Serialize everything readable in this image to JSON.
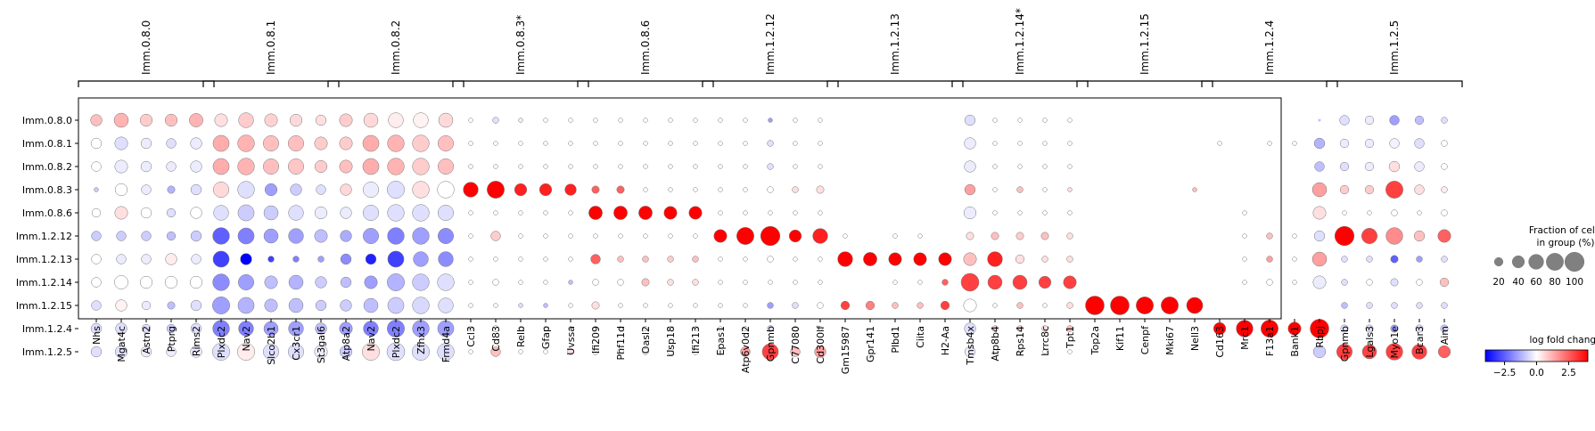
{
  "chart_data": {
    "type": "dotplot",
    "group_labels": [
      "Imm.0.8.0",
      "Imm.0.8.1",
      "Imm.0.8.2",
      "Imm.0.8.3*",
      "Imm.0.8.6",
      "Imm.1.2.12",
      "Imm.1.2.13",
      "Imm.1.2.14*",
      "Imm.1.2.15",
      "Imm.1.2.4",
      "Imm.1.2.5"
    ],
    "genes": [
      "Nhs",
      "Mgat4c",
      "Astn2",
      "Ptprg",
      "Rims2",
      "Plxdc2",
      "Nav2",
      "Slco2b1",
      "Cx3cr1",
      "St3gal6",
      "Atp8a2",
      "Nav2",
      "Plxdc2",
      "Zfhx3",
      "Frmd4a",
      "Ccl3",
      "Cd83",
      "Relb",
      "Gfap",
      "Uvssa",
      "Ifi209",
      "Phf11d",
      "Oasl2",
      "Usp18",
      "Ifi213",
      "Epas1",
      "Atp6v0d2",
      "Gpnmb",
      "C77080",
      "Cd300lf",
      "Gm15987",
      "Gpr141",
      "Plbd1",
      "Ciita",
      "H2-Aa",
      "Tmsb4x",
      "Atp8b4",
      "Rps14",
      "Lrrc8c",
      "Tpt1",
      "Top2a",
      "Kif11",
      "Cenpf",
      "Mki67",
      "Nell3",
      "Cd163",
      "Mrc1",
      "F13a1",
      "Bank1",
      "Rbpj",
      "Gpnmb",
      "Lgals3",
      "Myo1e",
      "Bcar3",
      "Aim"
    ],
    "rows": [
      "Imm.0.8.0",
      "Imm.0.8.1",
      "Imm.0.8.2",
      "Imm.0.8.3",
      "Imm.0.8.6",
      "Imm.1.2.12",
      "Imm.1.2.13",
      "Imm.1.2.14",
      "Imm.1.2.15",
      "Imm.1.2.4",
      "Imm.1.2.5"
    ],
    "fraction": [
      [
        35,
        55,
        40,
        40,
        50,
        45,
        60,
        45,
        40,
        30,
        45,
        55,
        60,
        60,
        55,
        5,
        10,
        5,
        5,
        5,
        5,
        5,
        5,
        5,
        5,
        5,
        5,
        5,
        5,
        5,
        2,
        2,
        2,
        2,
        2,
        30,
        5,
        5,
        5,
        5,
        2,
        2,
        2,
        2,
        2,
        2,
        2,
        2,
        2,
        2,
        25,
        20,
        25,
        20,
        10
      ],
      [
        30,
        45,
        30,
        25,
        35,
        70,
        75,
        65,
        65,
        45,
        45,
        70,
        75,
        75,
        65,
        5,
        5,
        5,
        5,
        5,
        5,
        5,
        5,
        5,
        5,
        5,
        5,
        10,
        5,
        5,
        2,
        2,
        2,
        2,
        2,
        35,
        5,
        5,
        5,
        5,
        2,
        2,
        2,
        2,
        2,
        5,
        2,
        5,
        5,
        30,
        20,
        20,
        25,
        25,
        10
      ],
      [
        25,
        45,
        30,
        25,
        35,
        70,
        75,
        65,
        65,
        40,
        45,
        70,
        75,
        75,
        65,
        5,
        5,
        5,
        5,
        5,
        5,
        5,
        5,
        5,
        5,
        5,
        5,
        10,
        5,
        5,
        2,
        2,
        2,
        2,
        2,
        35,
        5,
        5,
        5,
        5,
        2,
        2,
        2,
        2,
        2,
        2,
        2,
        2,
        2,
        25,
        20,
        20,
        30,
        25,
        10
      ],
      [
        5,
        40,
        25,
        15,
        30,
        65,
        75,
        40,
        35,
        25,
        35,
        65,
        80,
        75,
        75,
        60,
        80,
        40,
        40,
        35,
        15,
        15,
        5,
        5,
        5,
        5,
        5,
        10,
        10,
        15,
        2,
        2,
        2,
        2,
        2,
        30,
        5,
        10,
        5,
        5,
        2,
        2,
        2,
        2,
        5,
        2,
        2,
        2,
        2,
        55,
        20,
        20,
        80,
        25,
        10
      ],
      [
        20,
        45,
        30,
        20,
        35,
        60,
        70,
        55,
        60,
        40,
        35,
        65,
        75,
        75,
        65,
        5,
        5,
        5,
        5,
        5,
        50,
        50,
        50,
        45,
        45,
        5,
        5,
        5,
        5,
        5,
        2,
        2,
        2,
        2,
        2,
        40,
        5,
        5,
        5,
        5,
        2,
        2,
        2,
        2,
        2,
        2,
        5,
        2,
        2,
        45,
        5,
        5,
        10,
        5,
        10
      ],
      [
        25,
        25,
        25,
        20,
        30,
        75,
        70,
        55,
        60,
        45,
        35,
        65,
        75,
        75,
        65,
        5,
        25,
        5,
        5,
        5,
        5,
        5,
        5,
        5,
        5,
        45,
        80,
        100,
        40,
        60,
        5,
        2,
        5,
        5,
        2,
        15,
        15,
        15,
        15,
        10,
        2,
        2,
        2,
        2,
        2,
        2,
        5,
        10,
        5,
        30,
        100,
        65,
        75,
        30,
        45
      ],
      [
        25,
        25,
        25,
        35,
        25,
        70,
        35,
        10,
        10,
        10,
        30,
        30,
        70,
        60,
        60,
        5,
        5,
        5,
        5,
        5,
        25,
        10,
        10,
        10,
        10,
        5,
        5,
        10,
        5,
        5,
        60,
        50,
        45,
        45,
        45,
        45,
        60,
        20,
        10,
        10,
        2,
        2,
        2,
        2,
        2,
        2,
        5,
        10,
        5,
        55,
        10,
        10,
        15,
        10,
        10
      ],
      [
        25,
        50,
        40,
        40,
        40,
        75,
        65,
        45,
        55,
        35,
        30,
        45,
        80,
        75,
        75,
        5,
        10,
        5,
        5,
        5,
        10,
        10,
        15,
        10,
        10,
        5,
        5,
        5,
        5,
        5,
        2,
        2,
        5,
        5,
        10,
        85,
        55,
        55,
        40,
        45,
        2,
        2,
        2,
        2,
        2,
        2,
        5,
        10,
        5,
        45,
        10,
        10,
        15,
        10,
        20
      ],
      [
        25,
        35,
        20,
        15,
        30,
        80,
        70,
        45,
        55,
        30,
        35,
        55,
        70,
        75,
        60,
        5,
        5,
        5,
        5,
        5,
        15,
        5,
        5,
        5,
        5,
        5,
        5,
        10,
        10,
        10,
        20,
        20,
        10,
        10,
        20,
        45,
        5,
        10,
        5,
        10,
        95,
        95,
        80,
        80,
        70,
        2,
        2,
        2,
        2,
        2,
        10,
        10,
        10,
        10,
        10
      ],
      [
        30,
        35,
        20,
        20,
        30,
        75,
        60,
        55,
        60,
        35,
        45,
        60,
        80,
        75,
        70,
        5,
        10,
        5,
        5,
        5,
        5,
        5,
        5,
        5,
        5,
        5,
        5,
        10,
        5,
        5,
        2,
        2,
        2,
        2,
        2,
        35,
        10,
        10,
        10,
        10,
        2,
        2,
        2,
        2,
        2,
        40,
        75,
        80,
        45,
        95,
        15,
        15,
        15,
        15,
        15
      ],
      [
        30,
        40,
        30,
        25,
        35,
        80,
        80,
        65,
        65,
        45,
        40,
        80,
        85,
        80,
        75,
        5,
        25,
        5,
        5,
        10,
        10,
        10,
        10,
        10,
        10,
        10,
        25,
        70,
        25,
        35,
        2,
        2,
        2,
        2,
        2,
        30,
        5,
        5,
        5,
        5,
        2,
        2,
        2,
        2,
        2,
        2,
        2,
        2,
        2,
        40,
        65,
        55,
        75,
        60,
        40
      ]
    ],
    "logfc": [
      [
        1.0,
        1.2,
        0.8,
        1.0,
        1.2,
        0.5,
        0.8,
        0.7,
        0.6,
        0.5,
        0.8,
        0.6,
        0.3,
        0.2,
        0.6,
        0,
        -0.5,
        -0.3,
        0,
        0,
        0,
        0,
        0,
        0,
        0,
        0,
        0,
        -1.5,
        0,
        0,
        0,
        0,
        0,
        0,
        0,
        -0.5,
        0,
        0,
        0,
        0,
        0,
        0,
        0,
        0,
        0,
        0,
        0,
        0,
        0,
        -1,
        -0.5,
        -0.3,
        -1.5,
        -1,
        -0.5
      ],
      [
        0,
        -0.5,
        -0.3,
        -0.5,
        -0.3,
        1.3,
        1.2,
        1.0,
        1.0,
        0.8,
        0.8,
        1.3,
        1.2,
        0.8,
        1.0,
        0,
        0,
        0,
        0,
        0,
        0,
        0,
        0,
        0,
        0,
        0,
        0,
        -0.5,
        0,
        0,
        0,
        0,
        0,
        0,
        0,
        -0.3,
        0,
        0,
        0,
        0,
        0,
        0,
        0,
        0,
        0,
        0,
        0,
        0,
        0,
        -1.2,
        -0.3,
        -0.3,
        -0.2,
        -0.5,
        0
      ],
      [
        0,
        -0.3,
        -0.3,
        -0.3,
        -0.3,
        1.3,
        1.2,
        1.0,
        0.9,
        0.8,
        1.0,
        1.3,
        1.2,
        0.8,
        1.0,
        0,
        0,
        0,
        0,
        0,
        0,
        0,
        0,
        0,
        0,
        0,
        0,
        -0.5,
        0,
        0,
        0,
        0,
        0,
        0,
        0,
        -0.3,
        0,
        0,
        0,
        0,
        0,
        0,
        0,
        0,
        0,
        0,
        0,
        0,
        0,
        -1.0,
        -0.5,
        -0.3,
        0.5,
        -0.3,
        0
      ],
      [
        -0.8,
        0,
        -0.3,
        -1.2,
        -0.5,
        0.6,
        -0.5,
        -1.5,
        -0.8,
        -0.5,
        0.6,
        -0.3,
        -0.5,
        0.5,
        0,
        4,
        4,
        3.5,
        3.5,
        3.5,
        2.5,
        2.5,
        0,
        0,
        0,
        0,
        0,
        0,
        0.5,
        0.5,
        0,
        0,
        0,
        0,
        0,
        1.5,
        0,
        1.0,
        0,
        0.5,
        0,
        0,
        0,
        0,
        1.0,
        0,
        0,
        0,
        0,
        1.5,
        0.8,
        0.8,
        3.0,
        0.5,
        0.3
      ],
      [
        0,
        0.5,
        0,
        -0.5,
        0,
        -0.5,
        -0.8,
        -0.8,
        -0.5,
        -0.3,
        -0.3,
        -0.5,
        -0.5,
        -0.5,
        -0.5,
        0,
        0,
        0,
        0,
        0,
        4,
        4,
        4,
        4,
        4,
        0,
        0,
        0,
        0,
        0,
        0,
        0,
        0,
        0,
        0,
        -0.3,
        0,
        0,
        0,
        0,
        0,
        0,
        0,
        0,
        0,
        0,
        0,
        0,
        0,
        0.5,
        0,
        0,
        0,
        0,
        0
      ],
      [
        -0.8,
        -0.8,
        -0.8,
        -1.0,
        -0.8,
        -2.5,
        -2.0,
        -1.5,
        -1.5,
        -1.0,
        -1.3,
        -1.5,
        -2.0,
        -1.5,
        -1.8,
        0,
        0.8,
        0,
        0,
        0,
        0,
        0,
        0,
        0,
        0,
        4,
        4,
        4,
        4,
        3.5,
        0,
        0,
        0,
        0,
        0,
        0.5,
        1.0,
        0.8,
        1.0,
        0.5,
        0,
        0,
        0,
        0,
        0,
        0,
        0,
        1.0,
        0,
        -0.5,
        4,
        3.0,
        1.8,
        1.0,
        2.5
      ],
      [
        0,
        -0.3,
        -0.3,
        0.3,
        -0.3,
        -3.0,
        -4.0,
        -3.0,
        -2.0,
        -1.5,
        -1.8,
        -3.5,
        -3.0,
        -1.5,
        -1.8,
        0,
        0,
        0,
        0,
        0,
        2.5,
        1.0,
        1.0,
        0.8,
        1.0,
        0,
        0,
        0,
        0,
        0,
        4,
        4,
        4,
        4,
        4,
        1.0,
        3.5,
        0.5,
        0.5,
        0.5,
        0,
        0,
        0,
        0,
        0,
        0,
        0,
        1.5,
        0,
        1.5,
        -0.5,
        -0.5,
        -2.5,
        -1.5,
        -0.5
      ],
      [
        0,
        0,
        0,
        0,
        0,
        -1.8,
        -1.5,
        -1.0,
        -1.2,
        -0.8,
        -1.0,
        -1.5,
        -1.2,
        -0.8,
        -0.5,
        0,
        0,
        0,
        0,
        -1,
        0,
        0,
        1.0,
        0.5,
        0.5,
        0,
        0,
        0,
        0,
        0,
        0,
        0,
        0,
        0,
        2.5,
        3.0,
        3.0,
        3.0,
        3.0,
        3.0,
        0,
        0,
        0,
        0,
        0,
        0,
        0,
        0,
        0,
        -0.3,
        -0.5,
        0,
        -0.5,
        0,
        1.0
      ],
      [
        -0.5,
        0.2,
        -0.3,
        -1.0,
        -0.5,
        -1.5,
        -1.2,
        -1.0,
        -1.0,
        -0.8,
        -0.8,
        -1.0,
        -0.8,
        -0.6,
        -0.5,
        0,
        0,
        -0.5,
        -1,
        0,
        0.5,
        0,
        0,
        0,
        0,
        0,
        0,
        -1.5,
        -0.5,
        0,
        3.0,
        2.0,
        1.0,
        1.0,
        3.0,
        0,
        0,
        1.0,
        0,
        0.5,
        4,
        4,
        4,
        4,
        4,
        0,
        0,
        0,
        0,
        0,
        -1.0,
        -0.5,
        -0.5,
        -0.5,
        -0.5
      ],
      [
        -0.5,
        -0.5,
        -0.5,
        -0.8,
        -0.5,
        -2.0,
        -2.0,
        -1.5,
        -1.5,
        -1.0,
        -1.5,
        -2.0,
        -2.0,
        -1.5,
        -1.5,
        0,
        0,
        0,
        0,
        0,
        0,
        0,
        0,
        0,
        0,
        0,
        0,
        -0.5,
        0,
        0,
        0,
        0,
        0,
        0,
        0,
        -0.5,
        0.5,
        0.5,
        0.5,
        1.0,
        0,
        0,
        0,
        0,
        0,
        4,
        4,
        4,
        4,
        4,
        -0.5,
        -0.5,
        -1.5,
        -0.5,
        -0.8
      ],
      [
        -0.5,
        -0.5,
        -0.3,
        -0.3,
        -0.3,
        -0.5,
        0.3,
        -0.5,
        -0.5,
        -0.3,
        -0.8,
        0.5,
        -0.5,
        -0.5,
        -0.5,
        0,
        1.0,
        0,
        0,
        0.5,
        0,
        0,
        0,
        0,
        0,
        0,
        1.5,
        3.0,
        1.0,
        1.5,
        0,
        0,
        0,
        0,
        0,
        -0.3,
        0,
        0,
        0,
        0,
        0,
        0,
        0,
        0,
        0,
        0,
        0,
        0,
        0,
        -0.8,
        3.0,
        3.0,
        3.0,
        3.0,
        2.5
      ]
    ],
    "legend": {
      "size_title_line1": "Fraction of cells",
      "size_title_line2": "in group (%)",
      "size_values": [
        20,
        40,
        60,
        80,
        100
      ],
      "size_labels": [
        "20",
        "40",
        "60",
        "80",
        "100"
      ],
      "color_title": "log fold change",
      "color_range": [
        -4,
        4
      ],
      "color_ticks": [
        -2.5,
        0.0,
        2.5
      ],
      "color_tick_labels": [
        "−2.5",
        "0.0",
        "2.5"
      ]
    },
    "colormap": "bwr",
    "grid": false,
    "ylabel": "",
    "xlabel": ""
  }
}
